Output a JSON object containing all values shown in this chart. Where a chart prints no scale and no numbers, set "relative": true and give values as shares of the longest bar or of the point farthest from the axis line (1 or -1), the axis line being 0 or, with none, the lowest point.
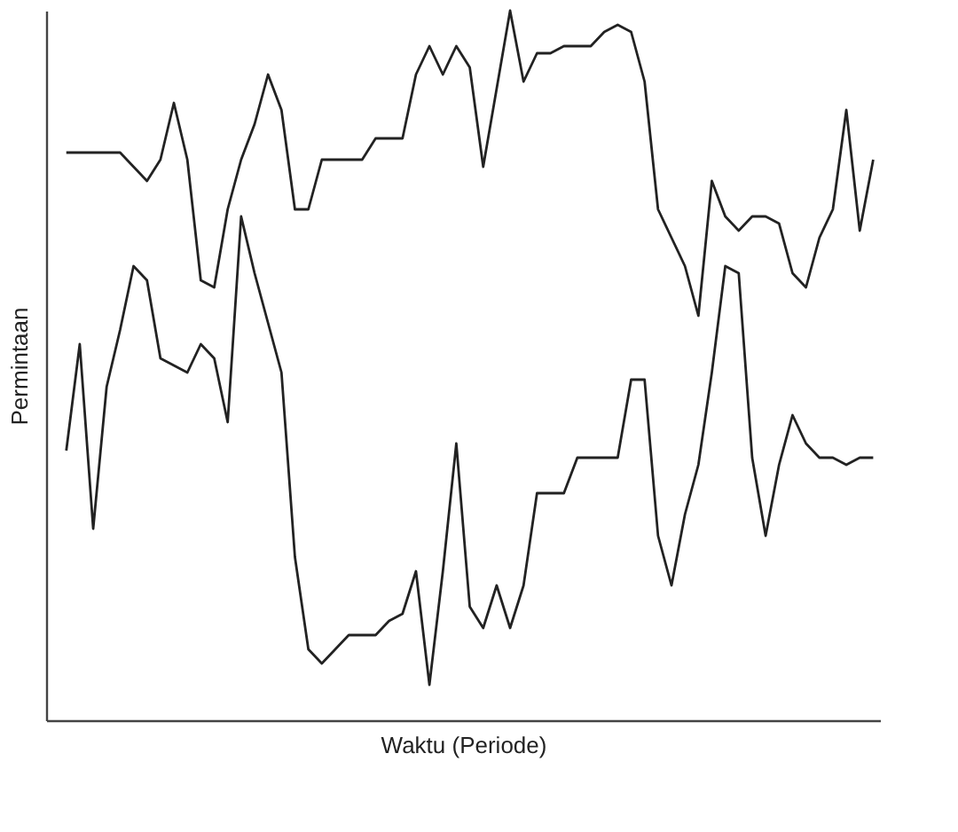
{
  "chart_data": {
    "type": "line",
    "relative": true,
    "xlabel": "Waktu (Periode)",
    "ylabel": "Permintaan",
    "grid": false,
    "marker": "none",
    "line_style": "solid",
    "categories": [
      null,
      null,
      null,
      null,
      null,
      null,
      null,
      null,
      null,
      null,
      null,
      null,
      null,
      null,
      null,
      null,
      null,
      null,
      null,
      null,
      null,
      null,
      null,
      null,
      null,
      null,
      null,
      null,
      null,
      null,
      null,
      null,
      null,
      null,
      null,
      null,
      null,
      null,
      null,
      null,
      null,
      null,
      null,
      null,
      null,
      null,
      null,
      null,
      null,
      null,
      null,
      null,
      null,
      null,
      null,
      null,
      null,
      null,
      null,
      null,
      null
    ],
    "series": [
      {
        "color": "#222222",
        "values": [
          0.8,
          0.8,
          0.8,
          0.8,
          0.8,
          0.78,
          0.76,
          0.79,
          0.87,
          0.79,
          0.62,
          0.61,
          0.72,
          0.79,
          0.84,
          0.91,
          0.86,
          0.72,
          0.72,
          0.79,
          0.79,
          0.79,
          0.79,
          0.82,
          0.82,
          0.82,
          0.91,
          0.95,
          0.91,
          0.95,
          0.92,
          0.78,
          0.89,
          1.0,
          0.9,
          0.94,
          0.94,
          0.95,
          0.95,
          0.95,
          0.97,
          0.98,
          0.97,
          0.9,
          0.72,
          0.68,
          0.64,
          0.57,
          0.76,
          0.71,
          0.69,
          0.71,
          0.71,
          0.7,
          0.63,
          0.61,
          0.68,
          0.72,
          0.86,
          0.69,
          0.79
        ]
      },
      {
        "color": "#222222",
        "values": [
          0.38,
          0.53,
          0.27,
          0.47,
          0.55,
          0.64,
          0.62,
          0.51,
          0.5,
          0.49,
          0.53,
          0.51,
          0.42,
          0.71,
          0.63,
          0.56,
          0.49,
          0.23,
          0.1,
          0.08,
          0.1,
          0.12,
          0.12,
          0.12,
          0.14,
          0.15,
          0.21,
          0.05,
          0.21,
          0.39,
          0.16,
          0.13,
          0.19,
          0.13,
          0.19,
          0.32,
          0.32,
          0.32,
          0.37,
          0.37,
          0.37,
          0.37,
          0.48,
          0.48,
          0.26,
          0.19,
          0.29,
          0.36,
          0.49,
          0.64,
          0.63,
          0.37,
          0.26,
          0.36,
          0.43,
          0.39,
          0.37,
          0.37,
          0.36,
          0.37,
          0.37
        ]
      }
    ]
  }
}
